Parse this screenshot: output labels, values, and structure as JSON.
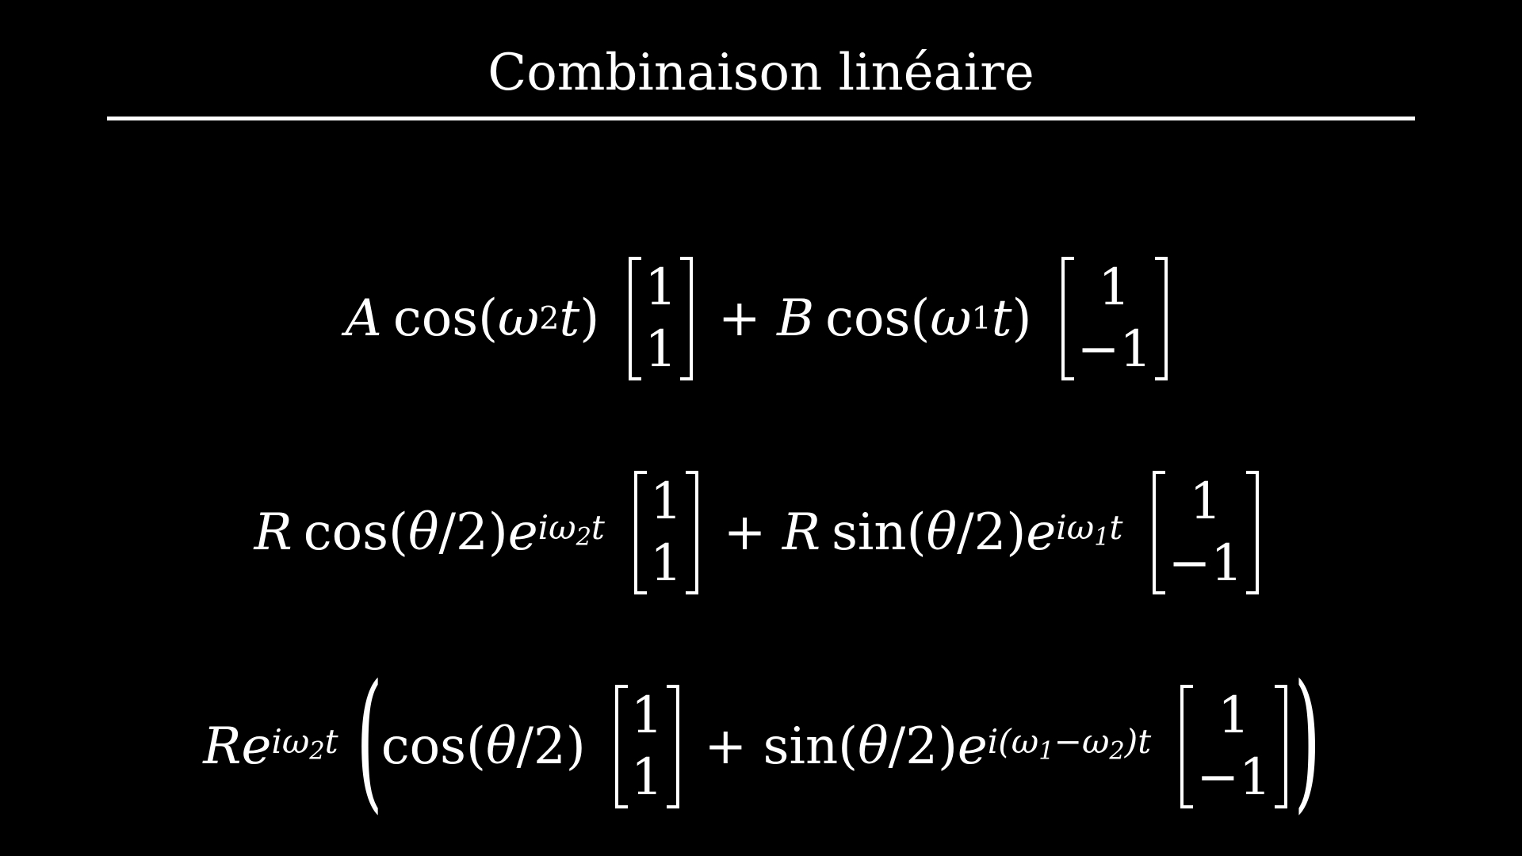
{
  "slide": {
    "title": "Combinaison linéaire"
  },
  "equations": {
    "line1": {
      "coef_a": "A",
      "func_a": "cos",
      "omega_a": "ω",
      "sub_a": "2",
      "var_t": "t",
      "plus": "+",
      "coef_b": "B",
      "func_b": "cos",
      "omega_b": "ω",
      "sub_b": "1",
      "vec1": [
        "1",
        "1"
      ],
      "vec2": [
        "1",
        "−1"
      ]
    },
    "line2": {
      "coef": "R",
      "func_a": "cos",
      "theta": "θ",
      "over2": "/2",
      "e": "e",
      "exp_a_i": "iω",
      "exp_a_sub": "2",
      "exp_t": "t",
      "plus": "+",
      "func_b": "sin",
      "exp_b_i": "iω",
      "exp_b_sub": "1",
      "vec1": [
        "1",
        "1"
      ],
      "vec2": [
        "1",
        "−1"
      ]
    },
    "line3": {
      "coef": "R",
      "e": "e",
      "exp_i": "iω",
      "exp_sub": "2",
      "exp_t": "t",
      "func_a": "cos",
      "theta": "θ",
      "over2": "/2",
      "plus": "+",
      "func_b": "sin",
      "exp2_prefix": "i(ω",
      "exp2_sub1": "1",
      "exp2_mid": "−ω",
      "exp2_sub2": "2",
      "exp2_suffix": ")t",
      "vec1": [
        "1",
        "1"
      ],
      "vec2": [
        "1",
        "−1"
      ]
    }
  }
}
